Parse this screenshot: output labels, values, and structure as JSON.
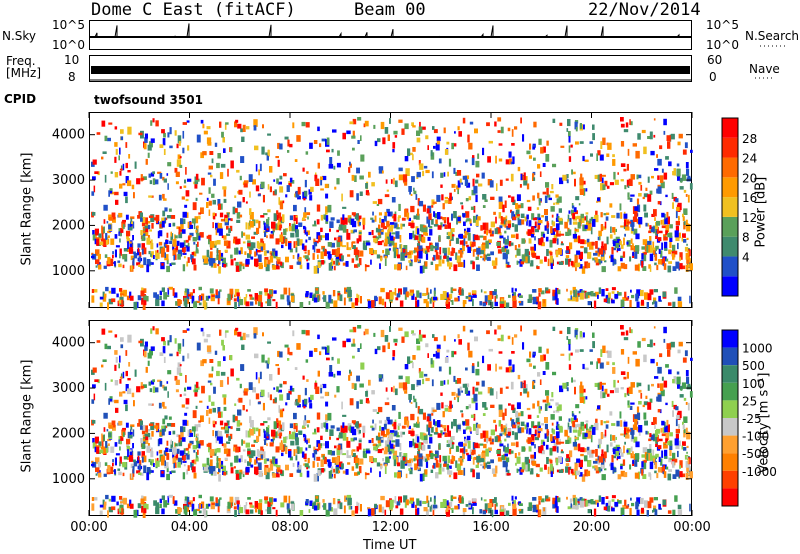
{
  "header": {
    "station": "Dome C East (fitACF)",
    "beam": "Beam 00",
    "date": "22/Nov/2014"
  },
  "top_panels": {
    "nsky_label": "N.Sky",
    "nsky_ticks": [
      "10^5",
      "10^0"
    ],
    "nsearch_label": "N.Search",
    "nsearch_ticks": [
      "10^5",
      "10^0"
    ],
    "freq_label_line1": "Freq.",
    "freq_label_line2": "[MHz]",
    "freq_ticks": [
      "10",
      "8"
    ],
    "nave_label": "Nave",
    "nave_ticks": [
      "60",
      "0"
    ],
    "cpid_label": "CPID",
    "cpid_value": "twofsound 3501"
  },
  "colors": {
    "power_scale": [
      "#0000ff",
      "#2050c8",
      "#3f8a6e",
      "#5aa05a",
      "#f0c020",
      "#ff9a00",
      "#ff6a00",
      "#ff2a00",
      "#ff0000"
    ],
    "velocity_scale": [
      "#0000ff",
      "#2050b8",
      "#3a8a6a",
      "#46a050",
      "#8fd050",
      "#c8c8c8",
      "#ffa030",
      "#ff8000",
      "#ff4000",
      "#ff0000"
    ]
  },
  "chart_data": [
    {
      "type": "heatmap",
      "name": "power",
      "ylabel": "Slant Range [km]",
      "yticks": [
        "4000",
        "3000",
        "2000",
        "1000"
      ],
      "ylim": [
        180,
        4500
      ],
      "colorbar_label": "Power [dB]",
      "colorbar_ticks": [
        "28",
        "24",
        "20",
        "16",
        "12",
        "8",
        "4"
      ],
      "colorbar_range": [
        0,
        32
      ]
    },
    {
      "type": "heatmap",
      "name": "velocity",
      "ylabel": "Slant Range [km]",
      "yticks": [
        "4000",
        "3000",
        "2000",
        "1000"
      ],
      "ylim": [
        180,
        4500
      ],
      "colorbar_label": "Velocity [m s⁻¹]",
      "colorbar_ticks": [
        "1000",
        "500",
        "100",
        "25",
        "-25",
        "-100",
        "-500",
        "-1000"
      ]
    }
  ],
  "xaxis": {
    "label": "Time UT",
    "ticks": [
      "00:00",
      "04:00",
      "08:00",
      "12:00",
      "16:00",
      "20:00",
      "00:00"
    ]
  }
}
